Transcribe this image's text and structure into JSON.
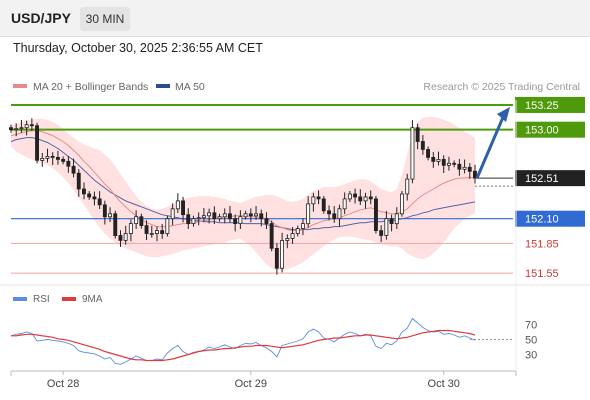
{
  "header": {
    "symbol": "USD/JPY",
    "timeframe": "30 MIN",
    "datetime": "Thursday, October 30, 2025 2:36:55 AM CET"
  },
  "legend": {
    "ma20_bb": "MA 20 + Bollinger Bands",
    "ma50": "MA 50",
    "credit": "Research © 2025 Trading Central"
  },
  "colors": {
    "green": "#4f9a0c",
    "blue": "#2f6bd3",
    "red": "#e05a5a",
    "candle": "#222222",
    "band": "#ffd7d7",
    "ma20": "#e98b8b",
    "ma50": "#5562a6",
    "rsi": "#5b8ee0",
    "rsi_ma": "#e03a3a",
    "arrow": "#2f5fa8"
  },
  "chart_data": [
    {
      "type": "candlestick",
      "title": "",
      "series_names": [
        "MA 20 + Bollinger Bands",
        "MA 50"
      ],
      "x_ticks": [
        "Oct 28",
        "Oct 29",
        "Oct 30"
      ],
      "ylim": [
        151.45,
        153.3
      ],
      "levels": [
        {
          "value": 153.25,
          "label": "153.25",
          "kind": "resistance",
          "color": "#4f9a0c"
        },
        {
          "value": 153.0,
          "label": "153.00",
          "kind": "resistance",
          "color": "#4f9a0c"
        },
        {
          "value": 152.51,
          "label": "152.51",
          "kind": "current",
          "color": "#222222"
        },
        {
          "value": 152.1,
          "label": "152.10",
          "kind": "pivot",
          "color": "#2f6bd3"
        },
        {
          "value": 151.85,
          "label": "151.85",
          "kind": "support",
          "color": "#e05a5a"
        },
        {
          "value": 151.55,
          "label": "151.55",
          "kind": "support",
          "color": "#e05a5a"
        }
      ],
      "close": [
        153.0,
        153.01,
        153.02,
        153.05,
        153.04,
        152.69,
        152.71,
        152.73,
        152.72,
        152.7,
        152.68,
        152.63,
        152.56,
        152.4,
        152.35,
        152.32,
        152.3,
        152.24,
        152.12,
        152.15,
        151.93,
        151.88,
        151.95,
        152.05,
        152.12,
        152.03,
        151.95,
        151.95,
        151.98,
        151.95,
        152.1,
        152.2,
        152.28,
        152.14,
        152.05,
        152.1,
        152.11,
        152.13,
        152.16,
        152.1,
        152.12,
        152.15,
        152.1,
        152.05,
        152.12,
        152.15,
        152.13,
        152.15,
        152.1,
        152.05,
        151.8,
        151.6,
        151.88,
        151.9,
        151.95,
        152.0,
        152.05,
        152.25,
        152.32,
        152.3,
        152.18,
        152.15,
        152.1,
        152.2,
        152.3,
        152.35,
        152.32,
        152.28,
        152.32,
        152.3,
        151.98,
        151.93,
        152.1,
        152.05,
        152.15,
        152.35,
        152.5,
        153.02,
        152.88,
        152.8,
        152.72,
        152.68,
        152.7,
        152.64,
        152.66,
        152.65,
        152.6,
        152.62,
        152.58,
        152.51
      ],
      "ma20": [
        152.94,
        152.95,
        152.97,
        152.98,
        152.99,
        152.99,
        152.98,
        152.96,
        152.94,
        152.91,
        152.88,
        152.84,
        152.79,
        152.74,
        152.68,
        152.63,
        152.57,
        152.51,
        152.45,
        152.4,
        152.33,
        152.27,
        152.22,
        152.17,
        152.13,
        152.09,
        152.06,
        152.04,
        152.02,
        152.02,
        152.02,
        152.03,
        152.04,
        152.05,
        152.05,
        152.06,
        152.07,
        152.08,
        152.09,
        152.1,
        152.11,
        152.12,
        152.12,
        152.13,
        152.13,
        152.13,
        152.12,
        152.12,
        152.11,
        152.1,
        152.07,
        152.03,
        152.01,
        151.99,
        151.98,
        151.98,
        151.99,
        152.01,
        152.04,
        152.06,
        152.08,
        152.09,
        152.1,
        152.11,
        152.13,
        152.15,
        152.17,
        152.19,
        152.2,
        152.21,
        152.19,
        152.17,
        152.16,
        152.15,
        152.15,
        152.17,
        152.2,
        152.25,
        152.3,
        152.34,
        152.37,
        152.4,
        152.43,
        152.46,
        152.48,
        152.5,
        152.51,
        152.51,
        152.52,
        152.51
      ],
      "ma50": [
        152.88,
        152.9,
        152.91,
        152.92,
        152.92,
        152.91,
        152.89,
        152.87,
        152.84,
        152.81,
        152.77,
        152.73,
        152.69,
        152.64,
        152.59,
        152.54,
        152.49,
        152.45,
        152.41,
        152.37,
        152.34,
        152.31,
        152.28,
        152.26,
        152.24,
        152.22,
        152.2,
        152.18,
        152.16,
        152.14,
        152.13,
        152.12,
        152.11,
        152.1,
        152.09,
        152.08,
        152.08,
        152.07,
        152.07,
        152.07,
        152.06,
        152.06,
        152.06,
        152.06,
        152.06,
        152.05,
        152.05,
        152.05,
        152.05,
        152.04,
        152.03,
        152.02,
        152.01,
        152.0,
        151.99,
        151.99,
        151.99,
        151.99,
        152.0,
        152.0,
        152.01,
        152.01,
        152.02,
        152.02,
        152.03,
        152.04,
        152.05,
        152.06,
        152.06,
        152.07,
        152.07,
        152.07,
        152.08,
        152.08,
        152.09,
        152.1,
        152.11,
        152.13,
        152.14,
        152.16,
        152.17,
        152.19,
        152.2,
        152.21,
        152.22,
        152.23,
        152.24,
        152.25,
        152.26,
        152.27
      ],
      "bb_upper": [
        153.05,
        153.06,
        153.08,
        153.09,
        153.1,
        153.11,
        153.11,
        153.1,
        153.08,
        153.05,
        153.01,
        152.96,
        152.92,
        152.88,
        152.85,
        152.83,
        152.81,
        152.79,
        152.75,
        152.7,
        152.63,
        152.55,
        152.48,
        152.4,
        152.33,
        152.27,
        152.23,
        152.2,
        152.19,
        152.2,
        152.22,
        152.25,
        152.28,
        152.3,
        152.31,
        152.32,
        152.33,
        152.33,
        152.33,
        152.32,
        152.31,
        152.3,
        152.28,
        152.27,
        152.26,
        152.28,
        152.3,
        152.32,
        152.33,
        152.34,
        152.34,
        152.33,
        152.3,
        152.28,
        152.27,
        152.28,
        152.3,
        152.34,
        152.38,
        152.4,
        152.42,
        152.42,
        152.42,
        152.43,
        152.45,
        152.47,
        152.49,
        152.5,
        152.5,
        152.48,
        152.44,
        152.4,
        152.38,
        152.37,
        152.4,
        152.55,
        152.75,
        152.95,
        153.08,
        153.12,
        153.13,
        153.13,
        153.12,
        153.1,
        153.08,
        153.05,
        153.02,
        152.98,
        152.95,
        152.92
      ],
      "bb_lower": [
        152.83,
        152.78,
        152.75,
        152.72,
        152.7,
        152.68,
        152.66,
        152.64,
        152.61,
        152.57,
        152.52,
        152.46,
        152.39,
        152.31,
        152.24,
        152.16,
        152.08,
        152.01,
        151.95,
        151.9,
        151.86,
        151.83,
        151.8,
        151.78,
        151.76,
        151.74,
        151.72,
        151.71,
        151.71,
        151.72,
        151.73,
        151.74,
        151.76,
        151.78,
        151.79,
        151.8,
        151.81,
        151.82,
        151.83,
        151.84,
        151.85,
        151.86,
        151.88,
        151.89,
        151.9,
        151.86,
        151.82,
        151.76,
        151.7,
        151.64,
        151.6,
        151.58,
        151.58,
        151.59,
        151.61,
        151.63,
        151.66,
        151.7,
        151.74,
        151.78,
        151.82,
        151.86,
        151.89,
        151.91,
        151.92,
        151.92,
        151.91,
        151.9,
        151.89,
        151.88,
        151.86,
        151.84,
        151.83,
        151.82,
        151.82,
        151.8,
        151.75,
        151.72,
        151.7,
        151.69,
        151.71,
        151.75,
        151.8,
        151.86,
        151.93,
        152.0,
        152.05,
        152.1,
        152.13,
        152.15
      ]
    },
    {
      "type": "line",
      "title": "",
      "series_names": [
        "RSI",
        "9MA"
      ],
      "y_ticks": [
        70,
        50,
        30
      ],
      "ylim": [
        20,
        80
      ],
      "rsi": [
        55,
        57,
        58,
        60,
        58,
        48,
        49,
        50,
        49,
        48,
        47,
        45,
        42,
        35,
        33,
        32,
        31,
        28,
        24,
        26,
        18,
        17,
        20,
        24,
        28,
        25,
        22,
        22,
        24,
        23,
        32,
        38,
        42,
        34,
        30,
        33,
        34,
        36,
        40,
        38,
        40,
        43,
        40,
        38,
        42,
        45,
        44,
        46,
        42,
        39,
        34,
        27,
        42,
        44,
        46,
        48,
        51,
        60,
        64,
        60,
        52,
        50,
        47,
        52,
        57,
        60,
        58,
        55,
        57,
        55,
        41,
        38,
        45,
        43,
        48,
        60,
        65,
        78,
        72,
        66,
        62,
        60,
        61,
        57,
        58,
        56,
        53,
        55,
        52,
        49
      ],
      "rsi_ma": [
        55,
        55,
        56,
        57,
        57,
        56,
        55,
        54,
        53,
        51,
        50,
        49,
        47,
        45,
        43,
        41,
        39,
        37,
        34,
        32,
        30,
        28,
        26,
        24,
        23,
        23,
        22,
        22,
        22,
        22,
        23,
        24,
        26,
        28,
        30,
        32,
        34,
        35,
        36,
        36,
        37,
        38,
        38,
        39,
        40,
        41,
        41,
        42,
        42,
        42,
        41,
        40,
        39,
        40,
        41,
        42,
        43,
        45,
        47,
        49,
        50,
        51,
        52,
        52,
        53,
        54,
        55,
        55,
        56,
        56,
        55,
        54,
        53,
        52,
        51,
        52,
        53,
        55,
        57,
        59,
        60,
        61,
        62,
        62,
        62,
        61,
        60,
        59,
        58,
        56
      ]
    }
  ]
}
